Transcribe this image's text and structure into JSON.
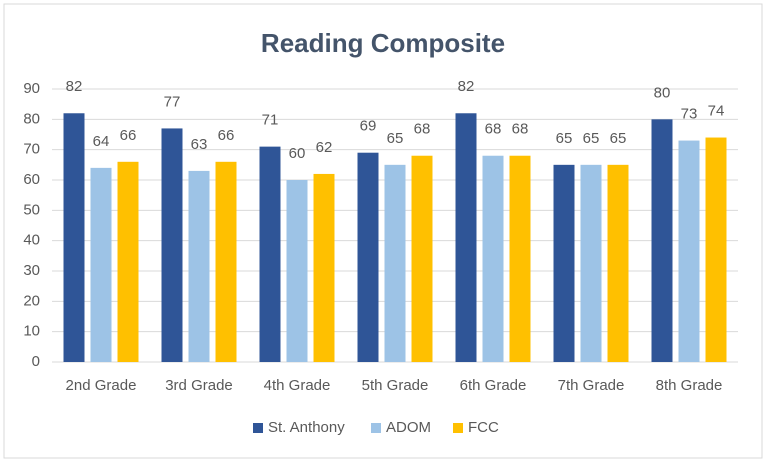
{
  "chart_data": {
    "type": "bar",
    "title": "Reading Composite",
    "categories": [
      "2nd Grade",
      "3rd Grade",
      "4th Grade",
      "5th Grade",
      "6th Grade",
      "7th Grade",
      "8th Grade"
    ],
    "series": [
      {
        "name": "St. Anthony",
        "color": "#2f5597",
        "values": [
          82,
          77,
          71,
          69,
          82,
          65,
          80
        ]
      },
      {
        "name": "ADOM",
        "color": "#9dc3e6",
        "values": [
          64,
          63,
          60,
          65,
          68,
          65,
          73
        ]
      },
      {
        "name": "FCC",
        "color": "#ffc000",
        "values": [
          66,
          66,
          62,
          68,
          68,
          65,
          74
        ]
      }
    ],
    "ylim": [
      0,
      90
    ],
    "yticks": [
      0,
      10,
      20,
      30,
      40,
      50,
      60,
      70,
      80,
      90
    ],
    "grid": true,
    "legend": "bottom"
  }
}
